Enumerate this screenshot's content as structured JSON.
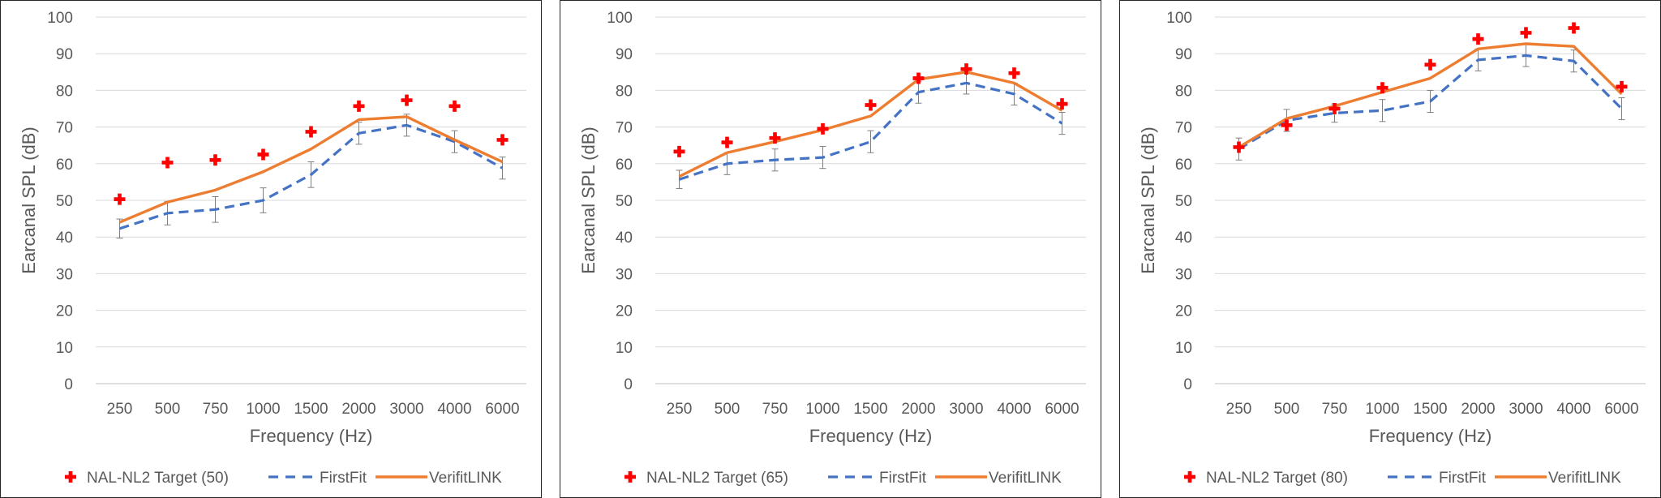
{
  "chart_data": [
    {
      "type": "line",
      "xlabel": "Frequency (Hz)",
      "ylabel": "Earcanal SPL (dB)",
      "ylim": [
        0,
        100
      ],
      "ytick_step": 10,
      "grid": true,
      "legend_position": "bottom",
      "categories": [
        "250",
        "500",
        "750",
        "1000",
        "1500",
        "2000",
        "3000",
        "4000",
        "6000"
      ],
      "series": [
        {
          "name": "NAL-NL2 Target (50)",
          "style": "marker-plus",
          "color": "#ff0000",
          "values": [
            50.3,
            60.3,
            61.0,
            62.5,
            68.7,
            75.7,
            77.3,
            75.7,
            66.5
          ]
        },
        {
          "name": "FirstFit",
          "style": "dashed",
          "color": "#4472c4",
          "values": [
            42.3,
            46.5,
            47.5,
            50.0,
            57.0,
            68.3,
            70.5,
            66.0,
            58.8
          ],
          "error": [
            2.6,
            3.2,
            3.5,
            3.4,
            3.5,
            3.0,
            3.0,
            3.0,
            3.0
          ]
        },
        {
          "name": "VerifitLINK",
          "style": "solid",
          "color": "#ed7d31",
          "values": [
            44.0,
            49.5,
            52.8,
            57.8,
            64.0,
            72.0,
            72.8,
            66.5,
            60.5
          ]
        }
      ]
    },
    {
      "type": "line",
      "xlabel": "Frequency (Hz)",
      "ylabel": "Earcanal SPL (dB)",
      "ylim": [
        0,
        100
      ],
      "ytick_step": 10,
      "grid": true,
      "legend_position": "bottom",
      "categories": [
        "250",
        "500",
        "750",
        "1000",
        "1500",
        "2000",
        "3000",
        "4000",
        "6000"
      ],
      "series": [
        {
          "name": "NAL-NL2 Target (65)",
          "style": "marker-plus",
          "color": "#ff0000",
          "values": [
            63.3,
            65.8,
            67.0,
            69.5,
            76.0,
            83.3,
            85.8,
            84.7,
            76.3
          ]
        },
        {
          "name": "FirstFit",
          "style": "dashed",
          "color": "#4472c4",
          "values": [
            55.7,
            60.0,
            61.0,
            61.7,
            66.0,
            79.5,
            82.0,
            79.0,
            71.0
          ],
          "error": [
            2.5,
            3.0,
            3.0,
            3.0,
            3.0,
            3.0,
            3.0,
            3.0,
            3.0
          ]
        },
        {
          "name": "VerifitLINK",
          "style": "solid",
          "color": "#ed7d31",
          "values": [
            56.5,
            63.0,
            66.0,
            69.2,
            73.0,
            83.0,
            85.0,
            82.0,
            74.5
          ]
        }
      ]
    },
    {
      "type": "line",
      "xlabel": "Frequency (Hz)",
      "ylabel": "Earcanal SPL (dB)",
      "ylim": [
        0,
        100
      ],
      "ytick_step": 10,
      "grid": true,
      "legend_position": "bottom",
      "categories": [
        "250",
        "500",
        "750",
        "1000",
        "1500",
        "2000",
        "3000",
        "4000",
        "6000"
      ],
      "series": [
        {
          "name": "NAL-NL2 Target (80)",
          "style": "marker-plus",
          "color": "#ff0000",
          "values": [
            64.5,
            70.5,
            75.0,
            80.7,
            87.0,
            94.0,
            95.7,
            97.0,
            81.0
          ]
        },
        {
          "name": "FirstFit",
          "style": "dashed",
          "color": "#4472c4",
          "values": [
            64.0,
            71.8,
            73.8,
            74.5,
            77.0,
            88.3,
            89.5,
            88.0,
            75.0
          ],
          "error": [
            3.0,
            3.0,
            2.5,
            3.0,
            3.0,
            3.0,
            3.0,
            3.0,
            3.0
          ]
        },
        {
          "name": "VerifitLINK",
          "style": "solid",
          "color": "#ed7d31",
          "values": [
            64.5,
            72.3,
            75.7,
            79.5,
            83.3,
            91.3,
            92.7,
            92.0,
            79.0
          ]
        }
      ]
    }
  ]
}
